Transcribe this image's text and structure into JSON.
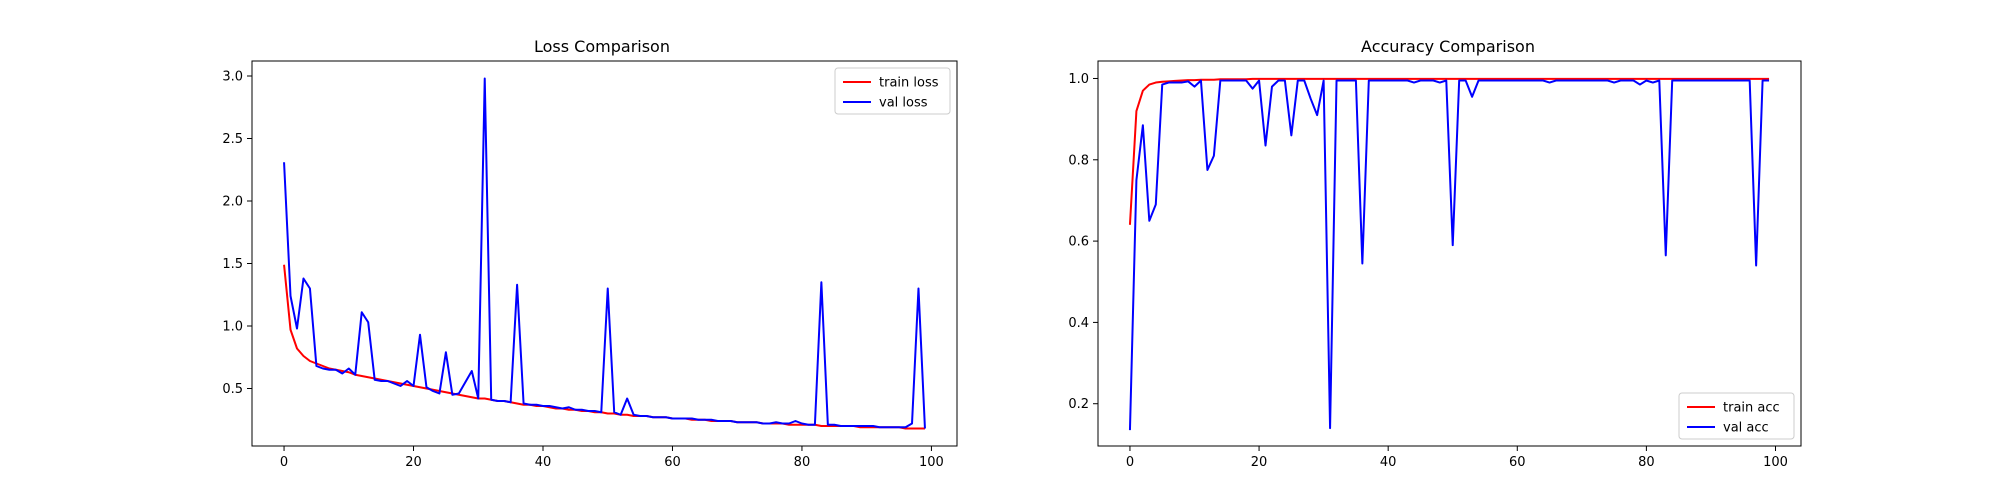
{
  "colors": {
    "train": "#ff0000",
    "val": "#0000ff",
    "axes": "#000000",
    "background": "#ffffff"
  },
  "chart_data": [
    {
      "type": "line",
      "title": "Loss Comparison",
      "xlabel": "",
      "ylabel": "",
      "xlim": [
        -4.95,
        103.95
      ],
      "ylim": [
        0.04,
        3.12
      ],
      "xticks": [
        0,
        20,
        40,
        60,
        80,
        100
      ],
      "yticks": [
        0.5,
        1.0,
        1.5,
        2.0,
        2.5,
        3.0
      ],
      "xtick_labels": [
        "0",
        "20",
        "40",
        "60",
        "80",
        "100"
      ],
      "ytick_labels": [
        "0.5",
        "1.0",
        "1.5",
        "2.0",
        "2.5",
        "3.0"
      ],
      "grid": false,
      "legend_position": "upper right",
      "legend": [
        {
          "label": "train loss",
          "color_key": "train"
        },
        {
          "label": "val loss",
          "color_key": "val"
        }
      ],
      "x": [
        0,
        1,
        2,
        3,
        4,
        5,
        6,
        7,
        8,
        9,
        10,
        11,
        12,
        13,
        14,
        15,
        16,
        17,
        18,
        19,
        20,
        21,
        22,
        23,
        24,
        25,
        26,
        27,
        28,
        29,
        30,
        31,
        32,
        33,
        34,
        35,
        36,
        37,
        38,
        39,
        40,
        41,
        42,
        43,
        44,
        45,
        46,
        47,
        48,
        49,
        50,
        51,
        52,
        53,
        54,
        55,
        56,
        57,
        58,
        59,
        60,
        61,
        62,
        63,
        64,
        65,
        66,
        67,
        68,
        69,
        70,
        71,
        72,
        73,
        74,
        75,
        76,
        77,
        78,
        79,
        80,
        81,
        82,
        83,
        84,
        85,
        86,
        87,
        88,
        89,
        90,
        91,
        92,
        93,
        94,
        95,
        96,
        97,
        98,
        99
      ],
      "series": [
        {
          "name": "train loss",
          "color_key": "train",
          "values": [
            1.49,
            0.97,
            0.82,
            0.76,
            0.72,
            0.7,
            0.68,
            0.66,
            0.65,
            0.64,
            0.63,
            0.61,
            0.6,
            0.59,
            0.58,
            0.57,
            0.56,
            0.55,
            0.54,
            0.53,
            0.52,
            0.51,
            0.5,
            0.49,
            0.48,
            0.47,
            0.46,
            0.45,
            0.44,
            0.43,
            0.42,
            0.42,
            0.41,
            0.4,
            0.4,
            0.39,
            0.38,
            0.37,
            0.37,
            0.36,
            0.36,
            0.35,
            0.34,
            0.34,
            0.33,
            0.33,
            0.32,
            0.32,
            0.31,
            0.31,
            0.3,
            0.3,
            0.29,
            0.29,
            0.28,
            0.28,
            0.28,
            0.27,
            0.27,
            0.27,
            0.26,
            0.26,
            0.26,
            0.25,
            0.25,
            0.25,
            0.24,
            0.24,
            0.24,
            0.24,
            0.23,
            0.23,
            0.23,
            0.23,
            0.22,
            0.22,
            0.22,
            0.22,
            0.21,
            0.21,
            0.21,
            0.21,
            0.21,
            0.2,
            0.2,
            0.2,
            0.2,
            0.2,
            0.2,
            0.19,
            0.19,
            0.19,
            0.19,
            0.19,
            0.19,
            0.19,
            0.18,
            0.18,
            0.18,
            0.18
          ]
        },
        {
          "name": "val loss",
          "color_key": "val",
          "values": [
            2.31,
            1.24,
            0.98,
            1.38,
            1.3,
            0.68,
            0.66,
            0.65,
            0.65,
            0.62,
            0.66,
            0.61,
            1.11,
            1.03,
            0.57,
            0.56,
            0.56,
            0.54,
            0.52,
            0.56,
            0.52,
            0.93,
            0.51,
            0.48,
            0.46,
            0.79,
            0.45,
            0.46,
            0.55,
            0.64,
            0.42,
            2.98,
            0.41,
            0.4,
            0.4,
            0.39,
            1.33,
            0.38,
            0.37,
            0.37,
            0.36,
            0.36,
            0.35,
            0.34,
            0.35,
            0.33,
            0.33,
            0.32,
            0.32,
            0.31,
            1.3,
            0.31,
            0.29,
            0.42,
            0.29,
            0.28,
            0.28,
            0.27,
            0.27,
            0.27,
            0.26,
            0.26,
            0.26,
            0.26,
            0.25,
            0.25,
            0.25,
            0.24,
            0.24,
            0.24,
            0.23,
            0.23,
            0.23,
            0.23,
            0.22,
            0.22,
            0.23,
            0.22,
            0.22,
            0.24,
            0.22,
            0.21,
            0.21,
            1.35,
            0.21,
            0.21,
            0.2,
            0.2,
            0.2,
            0.2,
            0.2,
            0.2,
            0.19,
            0.19,
            0.19,
            0.19,
            0.19,
            0.22,
            1.3,
            0.18
          ]
        }
      ]
    },
    {
      "type": "line",
      "title": "Accuracy Comparison",
      "xlabel": "",
      "ylabel": "",
      "xlim": [
        -4.95,
        103.95
      ],
      "ylim": [
        0.096,
        1.043
      ],
      "xticks": [
        0,
        20,
        40,
        60,
        80,
        100
      ],
      "yticks": [
        0.2,
        0.4,
        0.6,
        0.8,
        1.0
      ],
      "xtick_labels": [
        "0",
        "20",
        "40",
        "60",
        "80",
        "100"
      ],
      "ytick_labels": [
        "0.2",
        "0.4",
        "0.6",
        "0.8",
        "1.0"
      ],
      "grid": false,
      "legend_position": "lower right",
      "legend": [
        {
          "label": "train acc",
          "color_key": "train"
        },
        {
          "label": "val acc",
          "color_key": "val"
        }
      ],
      "x": [
        0,
        1,
        2,
        3,
        4,
        5,
        6,
        7,
        8,
        9,
        10,
        11,
        12,
        13,
        14,
        15,
        16,
        17,
        18,
        19,
        20,
        21,
        22,
        23,
        24,
        25,
        26,
        27,
        28,
        29,
        30,
        31,
        32,
        33,
        34,
        35,
        36,
        37,
        38,
        39,
        40,
        41,
        42,
        43,
        44,
        45,
        46,
        47,
        48,
        49,
        50,
        51,
        52,
        53,
        54,
        55,
        56,
        57,
        58,
        59,
        60,
        61,
        62,
        63,
        64,
        65,
        66,
        67,
        68,
        69,
        70,
        71,
        72,
        73,
        74,
        75,
        76,
        77,
        78,
        79,
        80,
        81,
        82,
        83,
        84,
        85,
        86,
        87,
        88,
        89,
        90,
        91,
        92,
        93,
        94,
        95,
        96,
        97,
        98,
        99
      ],
      "series": [
        {
          "name": "train acc",
          "color_key": "train",
          "values": [
            0.64,
            0.92,
            0.97,
            0.985,
            0.99,
            0.992,
            0.993,
            0.994,
            0.995,
            0.996,
            0.996,
            0.997,
            0.997,
            0.997,
            0.998,
            0.998,
            0.998,
            0.998,
            0.998,
            0.999,
            0.999,
            0.999,
            0.999,
            0.999,
            0.999,
            0.999,
            0.999,
            0.999,
            0.999,
            0.999,
            0.999,
            0.999,
            0.999,
            0.999,
            0.999,
            0.999,
            0.999,
            0.999,
            0.999,
            0.999,
            0.999,
            0.999,
            0.999,
            0.999,
            0.999,
            0.999,
            0.999,
            0.999,
            0.999,
            0.999,
            0.999,
            0.999,
            0.999,
            0.999,
            0.999,
            0.999,
            0.999,
            0.999,
            0.999,
            0.999,
            0.999,
            0.999,
            0.999,
            0.999,
            0.999,
            0.999,
            0.999,
            0.999,
            0.999,
            0.999,
            0.999,
            0.999,
            0.999,
            0.999,
            0.999,
            0.999,
            0.999,
            0.999,
            0.999,
            0.999,
            0.999,
            0.999,
            0.999,
            0.999,
            0.999,
            0.999,
            0.999,
            0.999,
            0.999,
            0.999,
            0.999,
            0.999,
            0.999,
            0.999,
            0.999,
            0.999,
            0.999,
            0.999,
            0.999,
            0.999
          ]
        },
        {
          "name": "val acc",
          "color_key": "val",
          "values": [
            0.135,
            0.75,
            0.885,
            0.65,
            0.69,
            0.985,
            0.99,
            0.99,
            0.99,
            0.993,
            0.98,
            0.995,
            0.775,
            0.81,
            0.995,
            0.995,
            0.995,
            0.995,
            0.995,
            0.975,
            0.995,
            0.835,
            0.98,
            0.995,
            0.995,
            0.86,
            0.995,
            0.995,
            0.95,
            0.91,
            0.995,
            0.14,
            0.995,
            0.995,
            0.995,
            0.995,
            0.545,
            0.995,
            0.995,
            0.995,
            0.995,
            0.995,
            0.995,
            0.995,
            0.99,
            0.995,
            0.995,
            0.995,
            0.99,
            0.995,
            0.59,
            0.995,
            0.995,
            0.955,
            0.995,
            0.995,
            0.995,
            0.995,
            0.995,
            0.995,
            0.995,
            0.995,
            0.995,
            0.995,
            0.995,
            0.99,
            0.995,
            0.995,
            0.995,
            0.995,
            0.995,
            0.995,
            0.995,
            0.995,
            0.995,
            0.99,
            0.995,
            0.995,
            0.995,
            0.985,
            0.995,
            0.99,
            0.995,
            0.565,
            0.995,
            0.995,
            0.995,
            0.995,
            0.995,
            0.995,
            0.995,
            0.995,
            0.995,
            0.995,
            0.995,
            0.995,
            0.995,
            0.54,
            0.995,
            0.995
          ]
        }
      ]
    }
  ]
}
